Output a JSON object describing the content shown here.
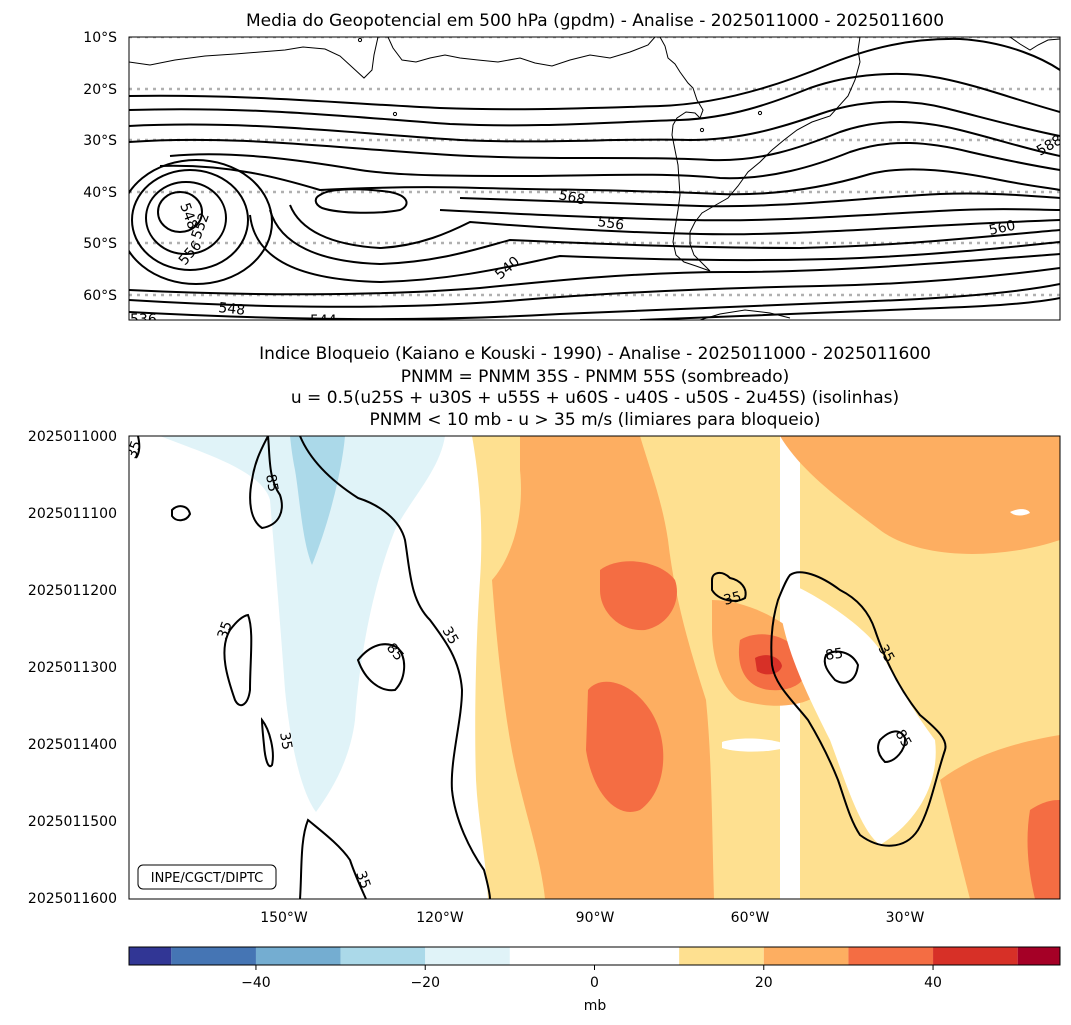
{
  "chart_data": [
    {
      "type": "contour",
      "title": "Media do Geopotencial em 500 hPa (gpdm) - Analise - 2025011000 - 2025011600",
      "ylabels": [
        "10°S",
        "20°S",
        "30°S",
        "40°S",
        "50°S",
        "60°S"
      ],
      "ylim": [
        -10,
        -65
      ],
      "contour_labels": [
        "548",
        "552",
        "556",
        "568",
        "556",
        "540",
        "560",
        "588",
        "548",
        "544",
        "536"
      ]
    },
    {
      "type": "heatmap",
      "title_lines": [
        "Indice Bloqueio (Kaiano e Kouski - 1990) - Analise - 2025011000 - 2025011600",
        "PNMM = PNMM 35S - PNMM 55S (sombreado)",
        "u = 0.5(u25S + u30S + u55S + u60S - u40S - u50S - 2u45S) (isolinhas)",
        "PNMM < 10 mb - u > 35 m/s (limiares para bloqueio)"
      ],
      "ylabels": [
        "2025011000",
        "2025011100",
        "2025011200",
        "2025011300",
        "2025011400",
        "2025011500",
        "2025011600"
      ],
      "xlabels": [
        "150°W",
        "120°W",
        "90°W",
        "60°W",
        "30°W"
      ],
      "xlim": [
        -180,
        0
      ],
      "isoline_labels": [
        "35",
        "85",
        "35",
        "35",
        "85",
        "35",
        "35",
        "35",
        "85",
        "35",
        "85",
        "35"
      ],
      "credit": "INPE/CGCT/DIPTC"
    },
    {
      "type": "colorbar",
      "levels": [
        -55,
        -50,
        -40,
        -30,
        -20,
        -10,
        10,
        20,
        30,
        40,
        50,
        55
      ],
      "colors": [
        "#313695",
        "#4575b4",
        "#74add1",
        "#abd9e9",
        "#e0f3f8",
        "#ffffff",
        "#fee090",
        "#fdae61",
        "#f46d43",
        "#d73027",
        "#a50026"
      ],
      "ticks": [
        "−40",
        "−20",
        "0",
        "20",
        "40"
      ],
      "tick_values": [
        -40,
        -20,
        0,
        20,
        40
      ],
      "label": "mb"
    }
  ]
}
